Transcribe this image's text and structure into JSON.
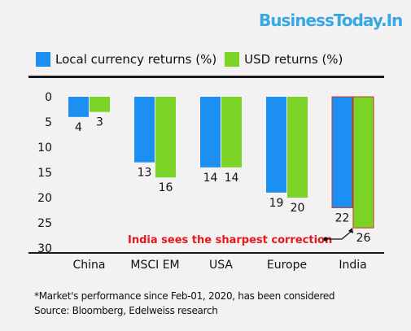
{
  "brand": "BusinessToday.In",
  "colors": {
    "local": "#1c90f2",
    "usd": "#7ad325",
    "annotation": "#e11b1b",
    "background": "#f3f1f2"
  },
  "legend": {
    "local_label": "Local currency returns (%)",
    "usd_label": "USD returns (%)"
  },
  "chart_data": {
    "type": "bar",
    "orientation": "vertical-downward",
    "categories": [
      "China",
      "MSCI EM",
      "USA",
      "Europe",
      "India"
    ],
    "series": [
      {
        "name": "Local currency returns (%)",
        "values": [
          4,
          13,
          14,
          19,
          22
        ],
        "labels": [
          "4",
          "13",
          "14",
          "19",
          "22"
        ]
      },
      {
        "name": "USD returns (%)",
        "values": [
          3,
          16,
          14,
          20,
          26
        ],
        "labels": [
          "3",
          "16",
          "14",
          "20",
          "26"
        ]
      }
    ],
    "y_ticks": [
      "0",
      "5",
      "10",
      "15",
      "20",
      "25",
      "30"
    ],
    "ylim": [
      0,
      30
    ],
    "y_inverted": true,
    "grid": false,
    "legend_position": "top-left",
    "annotation": {
      "text": "India sees the sharpest correction",
      "target_category": "India"
    }
  },
  "footnote": {
    "line1": "*Market's performance since Feb-01, 2020, has been considered",
    "line2": "Source: Bloomberg, Edelweiss research"
  }
}
